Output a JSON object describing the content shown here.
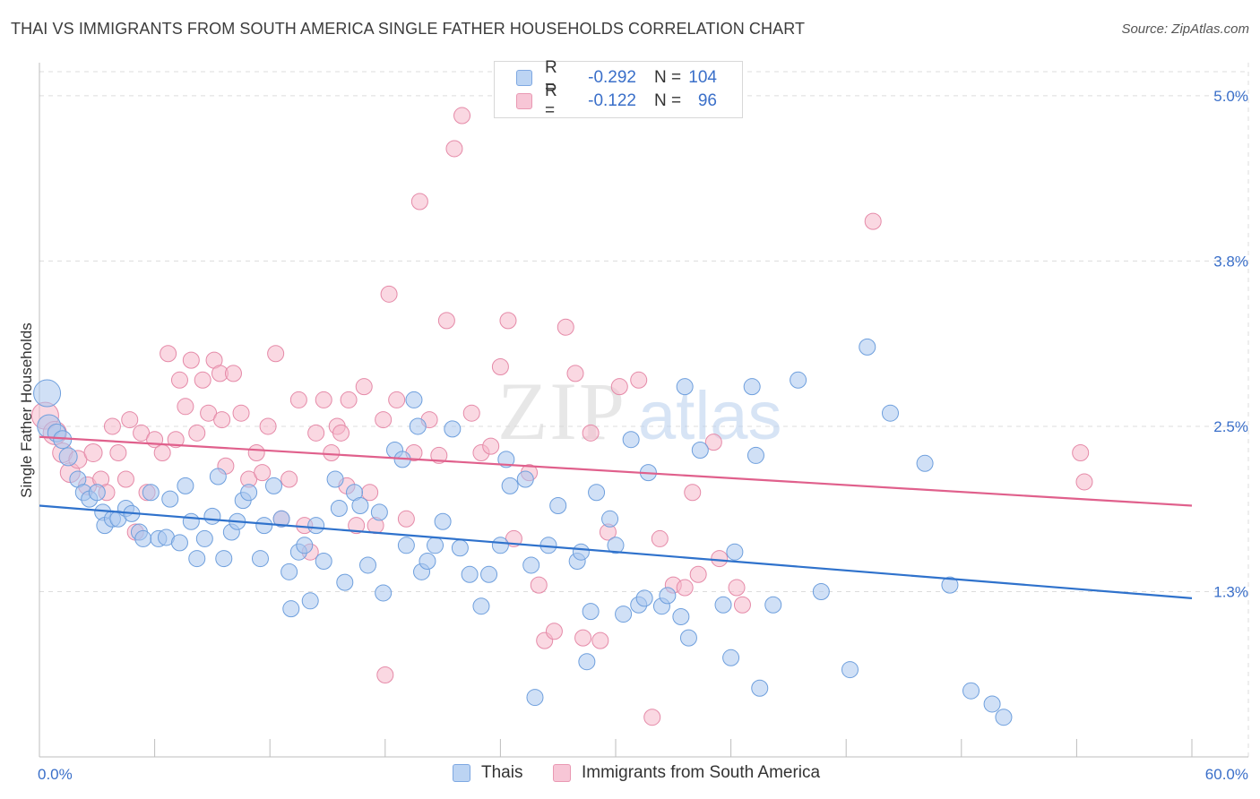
{
  "header": {
    "title": "THAI VS IMMIGRANTS FROM SOUTH AMERICA SINGLE FATHER HOUSEHOLDS CORRELATION CHART",
    "source": "Source: ZipAtlas.com"
  },
  "watermark": {
    "zip": "ZIP",
    "atlas": "atlas"
  },
  "legend": {
    "r_label": "R =",
    "n_label": "N =",
    "entries": [
      {
        "r": "-0.292",
        "n": "104"
      },
      {
        "r": "-0.122",
        "n": "96"
      }
    ]
  },
  "chart_data": {
    "type": "scatter",
    "title": "THAI VS IMMIGRANTS FROM SOUTH AMERICA SINGLE FATHER HOUSEHOLDS CORRELATION CHART",
    "ylabel": "Single Father Households",
    "xlabel": "",
    "xlim": [
      0,
      60
    ],
    "ylim": [
      0,
      5.25
    ],
    "x_tick_labels": [
      "0.0%",
      "60.0%"
    ],
    "y_ticks": [
      {
        "value": 1.25,
        "label": "1.3%"
      },
      {
        "value": 2.5,
        "label": "2.5%"
      },
      {
        "value": 3.75,
        "label": "3.8%"
      },
      {
        "value": 5.0,
        "label": "5.0%"
      }
    ],
    "grid": true,
    "legend_position": "top-center",
    "colors": {
      "thais_fill": "#a9c6ee",
      "thais_stroke": "#6e9fdd",
      "thais_line": "#2f72cc",
      "sa_fill": "#f5b8cb",
      "sa_stroke": "#e58aa8",
      "sa_line": "#e0608c",
      "axis_text": "#3a6fc9",
      "grid": "#dcdcdc"
    },
    "series": [
      {
        "name": "Thais",
        "trend": {
          "x": [
            0,
            60
          ],
          "y": [
            1.9,
            1.2
          ]
        },
        "points": [
          [
            0.4,
            2.75,
            15
          ],
          [
            0.5,
            2.5,
            13
          ],
          [
            0.9,
            2.45,
            10
          ],
          [
            1.2,
            2.4,
            10
          ],
          [
            1.5,
            2.27,
            10
          ],
          [
            2.0,
            2.1,
            9
          ],
          [
            2.3,
            2.0,
            9
          ],
          [
            2.6,
            1.95,
            9
          ],
          [
            3.0,
            2.0,
            9
          ],
          [
            3.3,
            1.85,
            9
          ],
          [
            3.4,
            1.75,
            9
          ],
          [
            3.8,
            1.8,
            9
          ],
          [
            4.1,
            1.8,
            9
          ],
          [
            4.5,
            1.88,
            9
          ],
          [
            4.8,
            1.84,
            9
          ],
          [
            5.2,
            1.7,
            9
          ],
          [
            5.4,
            1.65,
            9
          ],
          [
            5.8,
            2.0,
            9
          ],
          [
            6.2,
            1.65,
            9
          ],
          [
            6.6,
            1.66,
            9
          ],
          [
            6.8,
            1.95,
            9
          ],
          [
            7.3,
            1.62,
            9
          ],
          [
            7.6,
            2.05,
            9
          ],
          [
            7.9,
            1.78,
            9
          ],
          [
            8.2,
            1.5,
            9
          ],
          [
            8.6,
            1.65,
            9
          ],
          [
            9.0,
            1.82,
            9
          ],
          [
            9.3,
            2.12,
            9
          ],
          [
            9.6,
            1.5,
            9
          ],
          [
            10.0,
            1.7,
            9
          ],
          [
            10.3,
            1.78,
            9
          ],
          [
            10.6,
            1.94,
            9
          ],
          [
            10.9,
            2.0,
            9
          ],
          [
            11.5,
            1.5,
            9
          ],
          [
            11.7,
            1.75,
            9
          ],
          [
            12.2,
            2.05,
            9
          ],
          [
            12.6,
            1.8,
            9
          ],
          [
            13.0,
            1.4,
            9
          ],
          [
            13.1,
            1.12,
            9
          ],
          [
            13.5,
            1.55,
            9
          ],
          [
            13.8,
            1.6,
            9
          ],
          [
            14.1,
            1.18,
            9
          ],
          [
            14.4,
            1.75,
            9
          ],
          [
            14.8,
            1.48,
            9
          ],
          [
            15.4,
            2.1,
            9
          ],
          [
            15.6,
            1.88,
            9
          ],
          [
            15.9,
            1.32,
            9
          ],
          [
            16.4,
            2.0,
            9
          ],
          [
            16.7,
            1.9,
            9
          ],
          [
            17.1,
            1.45,
            9
          ],
          [
            17.7,
            1.85,
            9
          ],
          [
            17.9,
            1.24,
            9
          ],
          [
            18.5,
            2.32,
            9
          ],
          [
            18.9,
            2.25,
            9
          ],
          [
            19.1,
            1.6,
            9
          ],
          [
            19.5,
            2.7,
            9
          ],
          [
            19.7,
            2.5,
            9
          ],
          [
            19.9,
            1.4,
            9
          ],
          [
            20.2,
            1.48,
            9
          ],
          [
            20.6,
            1.6,
            9
          ],
          [
            21.0,
            1.78,
            9
          ],
          [
            21.5,
            2.48,
            9
          ],
          [
            21.9,
            1.58,
            9
          ],
          [
            22.4,
            1.38,
            9
          ],
          [
            23.0,
            1.14,
            9
          ],
          [
            23.4,
            1.38,
            9
          ],
          [
            24.0,
            1.6,
            9
          ],
          [
            24.3,
            2.25,
            9
          ],
          [
            24.5,
            2.05,
            9
          ],
          [
            25.3,
            2.1,
            9
          ],
          [
            25.6,
            1.45,
            9
          ],
          [
            25.8,
            0.45,
            9
          ],
          [
            26.5,
            1.6,
            9
          ],
          [
            27.0,
            1.9,
            9
          ],
          [
            28.0,
            1.48,
            9
          ],
          [
            28.2,
            1.55,
            9
          ],
          [
            28.5,
            0.72,
            9
          ],
          [
            28.7,
            1.1,
            9
          ],
          [
            29.0,
            2.0,
            9
          ],
          [
            29.7,
            1.8,
            9
          ],
          [
            30.0,
            1.6,
            9
          ],
          [
            30.4,
            1.08,
            9
          ],
          [
            30.8,
            2.4,
            9
          ],
          [
            31.2,
            1.15,
            9
          ],
          [
            31.5,
            1.2,
            9
          ],
          [
            31.7,
            2.15,
            9
          ],
          [
            32.4,
            1.14,
            9
          ],
          [
            32.7,
            1.22,
            9
          ],
          [
            33.4,
            1.06,
            9
          ],
          [
            33.6,
            2.8,
            9
          ],
          [
            33.8,
            0.9,
            9
          ],
          [
            34.4,
            2.32,
            9
          ],
          [
            35.6,
            1.15,
            9
          ],
          [
            36.0,
            0.75,
            9
          ],
          [
            36.2,
            1.55,
            9
          ],
          [
            37.1,
            2.8,
            9
          ],
          [
            37.3,
            2.28,
            9
          ],
          [
            38.2,
            1.15,
            9
          ],
          [
            37.5,
            0.52,
            9
          ],
          [
            40.7,
            1.25,
            9
          ],
          [
            39.5,
            2.85,
            9
          ],
          [
            42.2,
            0.66,
            9
          ],
          [
            43.1,
            3.1,
            9
          ],
          [
            44.3,
            2.6,
            9
          ],
          [
            46.1,
            2.22,
            9
          ],
          [
            47.4,
            1.3,
            9
          ],
          [
            48.5,
            0.5,
            9
          ],
          [
            49.6,
            0.4,
            9
          ],
          [
            50.2,
            0.3,
            9
          ]
        ]
      },
      {
        "name": "Immigrants from South America",
        "trend": {
          "x": [
            0,
            60
          ],
          "y": [
            2.42,
            1.9
          ]
        },
        "points": [
          [
            0.3,
            2.58,
            15
          ],
          [
            0.8,
            2.45,
            13
          ],
          [
            1.2,
            2.3,
            11
          ],
          [
            1.6,
            2.15,
            11
          ],
          [
            2.0,
            2.25,
            10
          ],
          [
            2.5,
            2.05,
            10
          ],
          [
            2.8,
            2.3,
            10
          ],
          [
            3.2,
            2.1,
            9
          ],
          [
            3.5,
            2.0,
            9
          ],
          [
            3.8,
            2.5,
            9
          ],
          [
            4.1,
            2.3,
            9
          ],
          [
            4.5,
            2.1,
            9
          ],
          [
            4.7,
            2.55,
            9
          ],
          [
            5.0,
            1.7,
            9
          ],
          [
            5.3,
            2.45,
            9
          ],
          [
            5.6,
            2.0,
            9
          ],
          [
            6.0,
            2.4,
            9
          ],
          [
            6.4,
            2.3,
            9
          ],
          [
            6.7,
            3.05,
            9
          ],
          [
            7.1,
            2.4,
            9
          ],
          [
            7.3,
            2.85,
            9
          ],
          [
            7.6,
            2.65,
            9
          ],
          [
            7.9,
            3.0,
            9
          ],
          [
            8.2,
            2.45,
            9
          ],
          [
            8.5,
            2.85,
            9
          ],
          [
            8.8,
            2.6,
            9
          ],
          [
            9.1,
            3.0,
            9
          ],
          [
            9.4,
            2.9,
            9
          ],
          [
            9.7,
            2.2,
            9
          ],
          [
            10.1,
            2.9,
            9
          ],
          [
            10.5,
            2.6,
            9
          ],
          [
            10.9,
            2.1,
            9
          ],
          [
            11.3,
            2.3,
            9
          ],
          [
            11.6,
            2.15,
            9
          ],
          [
            11.9,
            2.5,
            9
          ],
          [
            12.3,
            3.05,
            9
          ],
          [
            12.6,
            1.8,
            9
          ],
          [
            13.0,
            2.1,
            9
          ],
          [
            13.5,
            2.7,
            9
          ],
          [
            13.8,
            1.75,
            9
          ],
          [
            14.1,
            1.55,
            9
          ],
          [
            14.4,
            2.45,
            9
          ],
          [
            14.8,
            2.7,
            9
          ],
          [
            15.2,
            2.3,
            9
          ],
          [
            15.5,
            2.5,
            9
          ],
          [
            15.7,
            2.45,
            9
          ],
          [
            16.1,
            2.7,
            9
          ],
          [
            16.5,
            1.75,
            9
          ],
          [
            16.9,
            2.8,
            9
          ],
          [
            17.2,
            2.0,
            9
          ],
          [
            17.5,
            1.75,
            9
          ],
          [
            17.9,
            2.55,
            9
          ],
          [
            18.2,
            3.5,
            9
          ],
          [
            18.6,
            2.7,
            9
          ],
          [
            19.1,
            1.8,
            9
          ],
          [
            19.5,
            2.3,
            9
          ],
          [
            19.8,
            4.2,
            9
          ],
          [
            20.3,
            2.55,
            9
          ],
          [
            20.8,
            2.28,
            9
          ],
          [
            21.2,
            3.3,
            9
          ],
          [
            21.6,
            4.6,
            9
          ],
          [
            22.0,
            4.85,
            9
          ],
          [
            22.5,
            2.6,
            9
          ],
          [
            23.0,
            2.3,
            9
          ],
          [
            23.5,
            2.35,
            9
          ],
          [
            24.0,
            2.95,
            9
          ],
          [
            24.4,
            3.3,
            9
          ],
          [
            24.7,
            1.65,
            9
          ],
          [
            25.5,
            2.15,
            9
          ],
          [
            26.0,
            1.3,
            9
          ],
          [
            26.3,
            0.88,
            9
          ],
          [
            26.8,
            0.95,
            9
          ],
          [
            27.4,
            3.25,
            9
          ],
          [
            27.9,
            2.9,
            9
          ],
          [
            28.3,
            0.9,
            9
          ],
          [
            28.7,
            2.45,
            9
          ],
          [
            29.2,
            0.88,
            9
          ],
          [
            29.6,
            1.7,
            9
          ],
          [
            30.2,
            2.8,
            9
          ],
          [
            31.2,
            2.85,
            9
          ],
          [
            31.9,
            0.3,
            9
          ],
          [
            32.3,
            1.65,
            9
          ],
          [
            33.0,
            1.3,
            9
          ],
          [
            33.6,
            1.28,
            9
          ],
          [
            34.0,
            2.0,
            9
          ],
          [
            34.3,
            1.38,
            9
          ],
          [
            35.1,
            2.38,
            9
          ],
          [
            35.4,
            1.5,
            9
          ],
          [
            36.3,
            1.28,
            9
          ],
          [
            36.6,
            1.15,
            9
          ],
          [
            43.4,
            4.05,
            9
          ],
          [
            54.2,
            2.3,
            9
          ],
          [
            54.4,
            2.08,
            9
          ],
          [
            16.0,
            2.05,
            9
          ],
          [
            9.5,
            2.55,
            9
          ],
          [
            18.0,
            0.62,
            9
          ]
        ]
      }
    ]
  },
  "bottom_legend": {
    "items": [
      "Thais",
      "Immigrants from South America"
    ]
  }
}
